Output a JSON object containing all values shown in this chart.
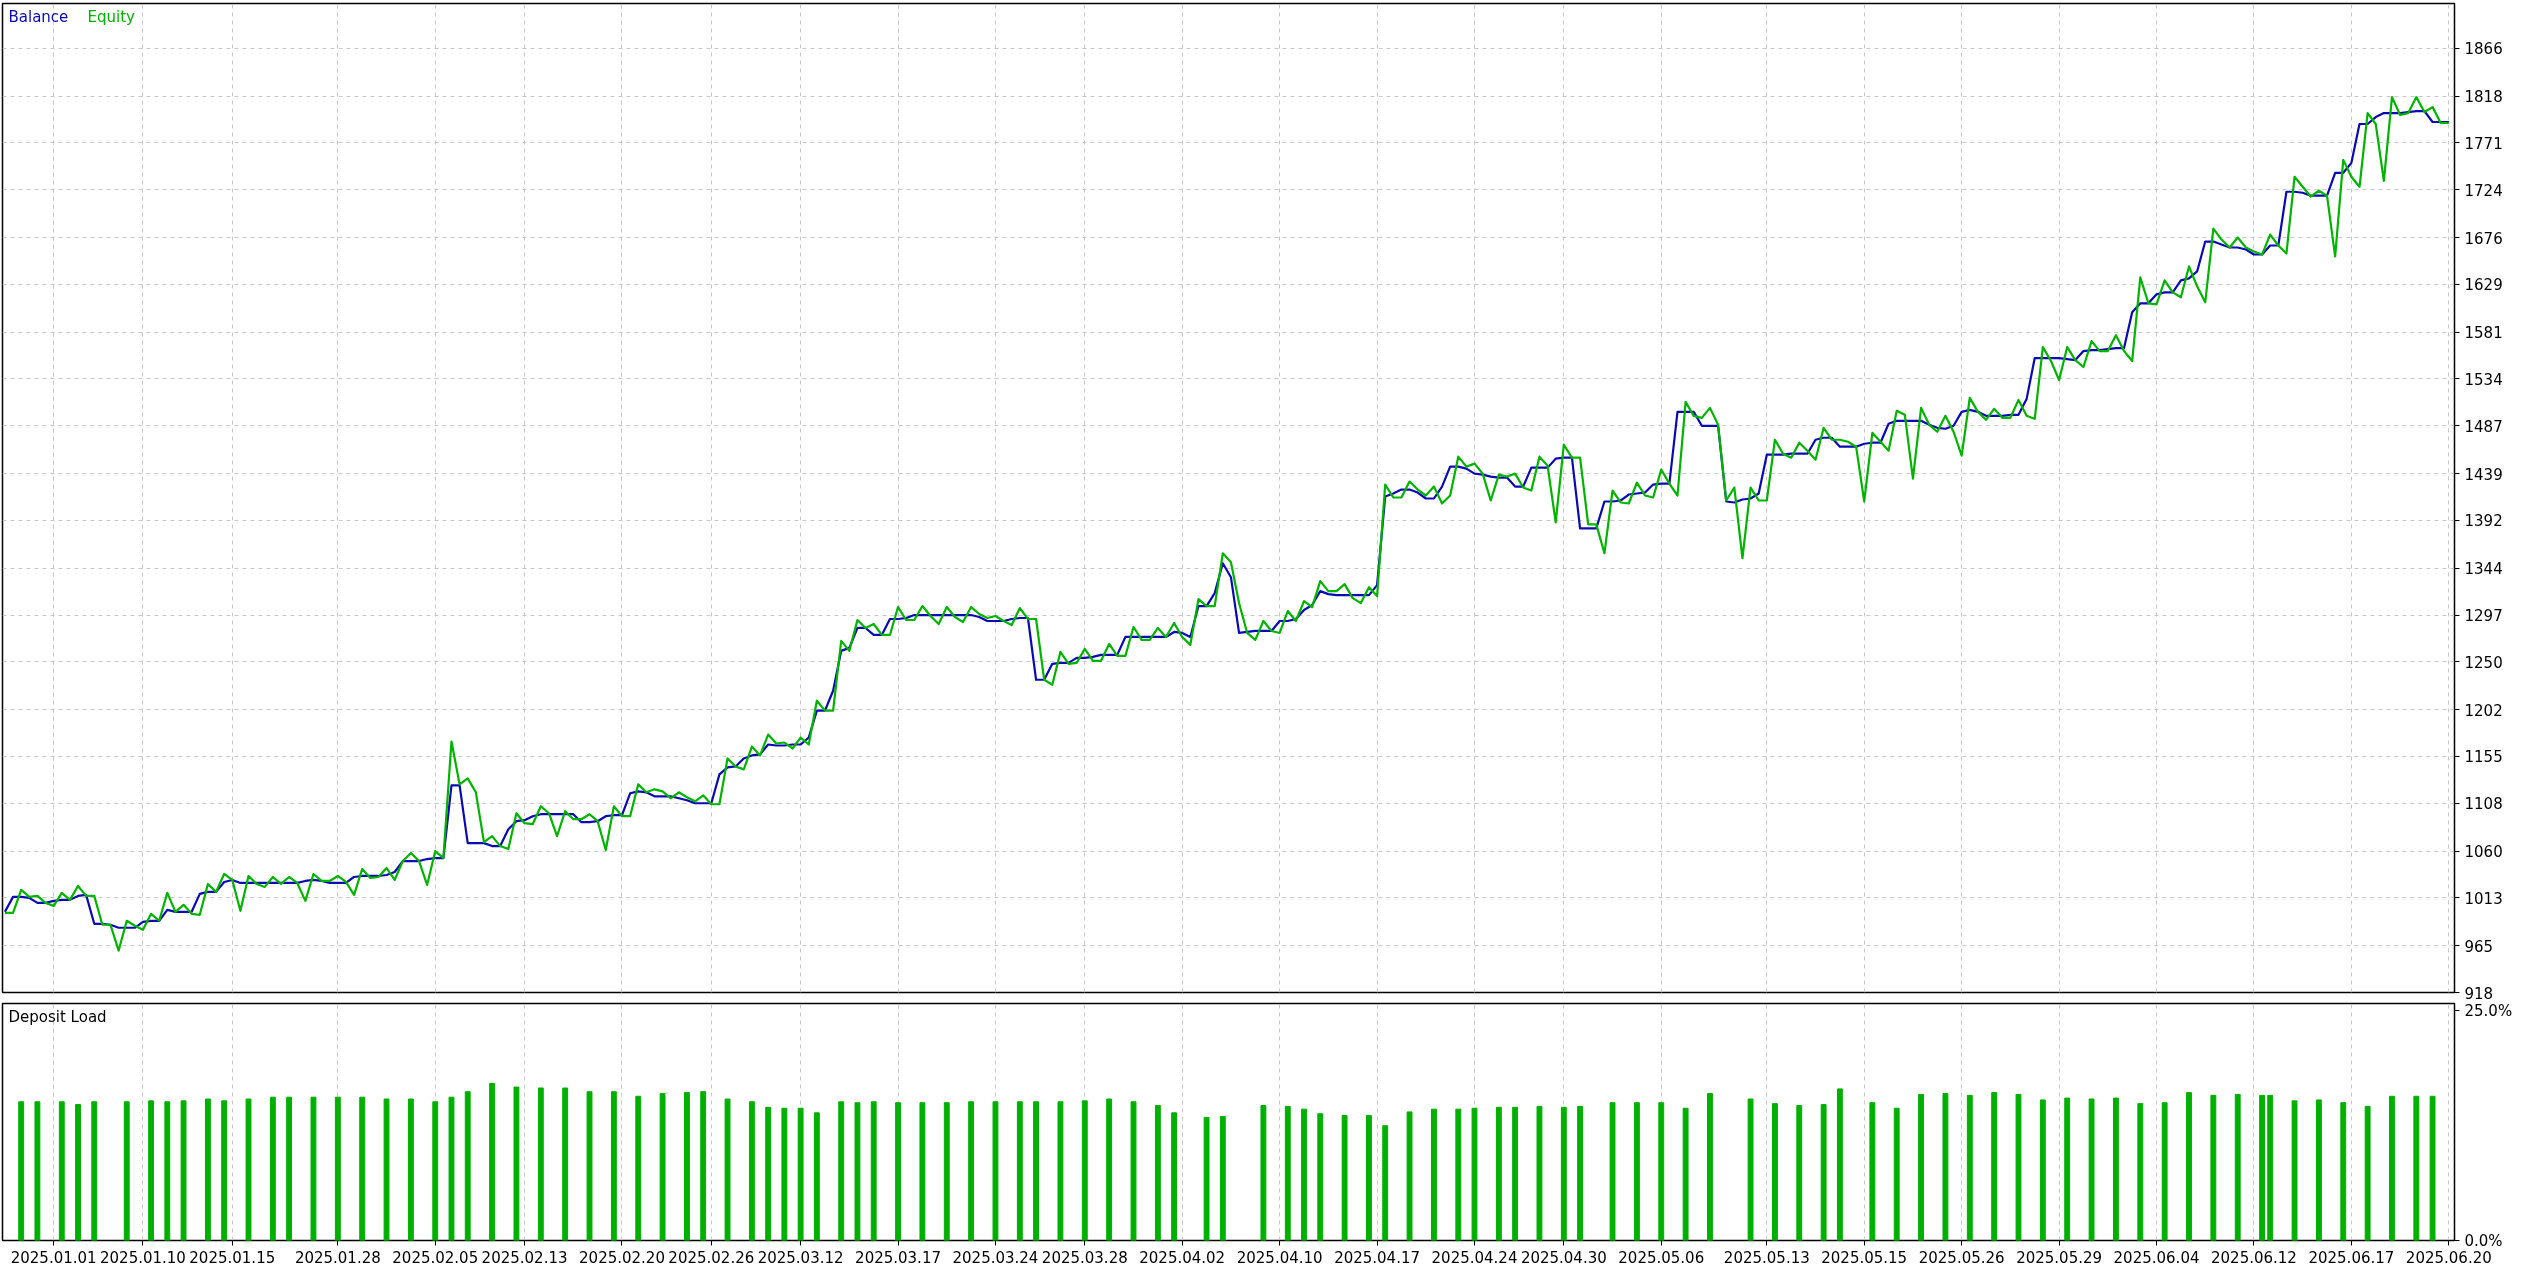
{
  "chart_data": [
    {
      "type": "line",
      "legend": "top left",
      "grid": true,
      "tick_labels": "y",
      "ylim": [
        918,
        1911
      ],
      "categories": [
        null,
        null,
        null,
        null,
        null,
        null,
        "2025.01.01",
        null,
        null,
        null,
        null,
        null,
        null,
        null,
        null,
        null,
        null,
        "2025.01.10",
        null,
        null,
        null,
        null,
        null,
        null,
        null,
        null,
        null,
        null,
        "2025.01.15",
        null,
        null,
        null,
        null,
        null,
        null,
        null,
        null,
        null,
        null,
        null,
        null,
        "2025.01.28",
        null,
        null,
        null,
        null,
        null,
        null,
        null,
        null,
        null,
        null,
        null,
        "2025.02.05",
        null,
        null,
        null,
        null,
        null,
        null,
        null,
        null,
        null,
        null,
        "2025.02.13",
        null,
        null,
        null,
        null,
        null,
        null,
        null,
        null,
        null,
        null,
        null,
        "2025.02.20",
        null,
        null,
        null,
        null,
        null,
        null,
        null,
        null,
        null,
        null,
        "2025.02.26",
        null,
        null,
        null,
        null,
        null,
        null,
        null,
        null,
        null,
        null,
        "2025.03.12",
        null,
        null,
        null,
        null,
        null,
        null,
        null,
        null,
        null,
        null,
        null,
        "2025.03.17",
        null,
        null,
        null,
        null,
        null,
        null,
        null,
        null,
        null,
        null,
        null,
        "2025.03.24",
        null,
        null,
        null,
        null,
        null,
        null,
        null,
        null,
        null,
        null,
        "2025.03.28",
        null,
        null,
        null,
        null,
        null,
        null,
        null,
        null,
        null,
        null,
        null,
        "2025.04.02",
        null,
        null,
        null,
        null,
        null,
        null,
        null,
        null,
        null,
        null,
        null,
        "2025.04.10",
        null,
        null,
        null,
        null,
        null,
        null,
        null,
        null,
        null,
        null,
        null,
        "2025.04.17",
        null,
        null,
        null,
        null,
        null,
        null,
        null,
        null,
        null,
        null,
        null,
        "2025.04.24",
        null,
        null,
        null,
        null,
        null,
        null,
        null,
        null,
        null,
        null,
        "2025.04.30",
        null,
        null,
        null,
        null,
        null,
        null,
        null,
        null,
        null,
        null,
        null,
        "2025.05.06",
        null,
        null,
        null,
        null,
        null,
        null,
        null,
        null,
        null,
        null,
        null,
        null,
        "2025.05.13",
        null,
        null,
        null,
        null,
        null,
        null,
        null,
        null,
        null,
        null,
        null,
        "2025.05.15",
        null,
        null,
        null,
        null,
        null,
        null,
        null,
        null,
        null,
        null,
        null,
        "2025.05.26",
        null,
        null,
        null,
        null,
        null,
        null,
        null,
        null,
        null,
        null,
        null,
        "2025.05.29",
        null,
        null,
        null,
        null,
        null,
        null,
        null,
        null,
        null,
        null,
        null,
        "2025.06.04",
        null,
        null,
        null,
        null,
        null,
        null,
        null,
        null,
        null,
        null,
        null,
        "2025.06.12",
        null,
        null,
        null,
        null,
        null,
        null,
        null,
        null,
        null,
        null,
        null,
        "2025.06.17",
        null,
        null,
        null,
        null,
        null,
        null,
        null,
        null,
        null,
        null,
        null,
        "2025.06.20"
      ],
      "yticks": [
        918,
        965,
        1013,
        1060,
        1108,
        1155,
        1202,
        1250,
        1297,
        1344,
        1392,
        1439,
        1487,
        1534,
        1581,
        1629,
        1676,
        1724,
        1771,
        1818,
        1866
      ],
      "series": [
        {
          "name": "Balance",
          "color": "#0a0ab4",
          "values": [
            999,
            1014,
            1014,
            1013,
            1008,
            1008,
            1010,
            1011,
            1011,
            1015,
            1016,
            987,
            987,
            986,
            983,
            983,
            983,
            989,
            990,
            990,
            1001,
            999,
            999,
            999,
            1017,
            1019,
            1019,
            1029,
            1031,
            1028,
            1028,
            1028,
            1028,
            1028,
            1028,
            1028,
            1028,
            1030,
            1031,
            1030,
            1028,
            1028,
            1028,
            1034,
            1035,
            1035,
            1035,
            1036,
            1039,
            1050,
            1050,
            1050,
            1052,
            1053,
            1053,
            1126,
            1126,
            1068,
            1068,
            1068,
            1065,
            1065,
            1082,
            1090,
            1091,
            1095,
            1097,
            1097,
            1097,
            1097,
            1097,
            1089,
            1089,
            1090,
            1095,
            1096,
            1096,
            1118,
            1120,
            1119,
            1115,
            1115,
            1115,
            1113,
            1111,
            1108,
            1108,
            1108,
            1137,
            1144,
            1145,
            1153,
            1156,
            1157,
            1167,
            1166,
            1166,
            1167,
            1167,
            1174,
            1201,
            1201,
            1221,
            1261,
            1264,
            1284,
            1284,
            1277,
            1277,
            1293,
            1293,
            1294,
            1297,
            1297,
            1297,
            1297,
            1297,
            1297,
            1297,
            1297,
            1295,
            1291,
            1291,
            1291,
            1293,
            1294,
            1294,
            1232,
            1232,
            1248,
            1249,
            1249,
            1254,
            1254,
            1255,
            1257,
            1257,
            1257,
            1275,
            1275,
            1275,
            1275,
            1275,
            1275,
            1280,
            1279,
            1275,
            1306,
            1306,
            1319,
            1349,
            1335,
            1279,
            1280,
            1281,
            1281,
            1281,
            1291,
            1291,
            1293,
            1302,
            1307,
            1321,
            1318,
            1317,
            1317,
            1317,
            1317,
            1317,
            1327,
            1416,
            1419,
            1423,
            1423,
            1420,
            1414,
            1414,
            1426,
            1446,
            1446,
            1444,
            1439,
            1438,
            1436,
            1435,
            1435,
            1426,
            1426,
            1445,
            1445,
            1445,
            1454,
            1455,
            1455,
            1384,
            1384,
            1384,
            1411,
            1411,
            1412,
            1418,
            1419,
            1420,
            1428,
            1429,
            1429,
            1501,
            1501,
            1501,
            1487,
            1487,
            1487,
            1411,
            1410,
            1413,
            1414,
            1419,
            1458,
            1458,
            1458,
            1459,
            1459,
            1459,
            1473,
            1475,
            1475,
            1466,
            1466,
            1466,
            1469,
            1470,
            1470,
            1489,
            1492,
            1492,
            1492,
            1492,
            1488,
            1485,
            1484,
            1487,
            1501,
            1503,
            1501,
            1497,
            1497,
            1497,
            1498,
            1498,
            1514,
            1555,
            1555,
            1555,
            1555,
            1554,
            1553,
            1562,
            1563,
            1563,
            1564,
            1565,
            1565,
            1601,
            1610,
            1610,
            1619,
            1621,
            1621,
            1633,
            1635,
            1642,
            1672,
            1672,
            1669,
            1666,
            1666,
            1664,
            1659,
            1659,
            1668,
            1668,
            1722,
            1722,
            1721,
            1718,
            1718,
            1718,
            1741,
            1741,
            1751,
            1790,
            1790,
            1797,
            1801,
            1801,
            1801,
            1802,
            1803,
            1803,
            1792,
            1792,
            1792
          ]
        },
        {
          "name": "Equity",
          "color": "#00b400",
          "values": [
            998,
            998,
            1021,
            1014,
            1015,
            1008,
            1005,
            1018,
            1011,
            1025,
            1015,
            1015,
            986,
            986,
            960,
            990,
            985,
            981,
            997,
            990,
            1018,
            999,
            1006,
            997,
            996,
            1027,
            1019,
            1037,
            1031,
            1000,
            1035,
            1027,
            1024,
            1034,
            1027,
            1034,
            1028,
            1010,
            1037,
            1030,
            1030,
            1035,
            1029,
            1016,
            1042,
            1033,
            1034,
            1043,
            1031,
            1050,
            1058,
            1050,
            1026,
            1060,
            1053,
            1170,
            1127,
            1133,
            1119,
            1069,
            1075,
            1065,
            1062,
            1098,
            1088,
            1087,
            1105,
            1098,
            1075,
            1100,
            1092,
            1092,
            1097,
            1090,
            1061,
            1105,
            1095,
            1095,
            1127,
            1119,
            1122,
            1120,
            1113,
            1119,
            1114,
            1110,
            1116,
            1107,
            1107,
            1153,
            1145,
            1142,
            1165,
            1156,
            1177,
            1168,
            1169,
            1163,
            1174,
            1167,
            1211,
            1201,
            1201,
            1271,
            1261,
            1292,
            1284,
            1288,
            1277,
            1277,
            1305,
            1292,
            1292,
            1306,
            1296,
            1288,
            1305,
            1295,
            1290,
            1305,
            1298,
            1294,
            1296,
            1291,
            1287,
            1304,
            1293,
            1293,
            1232,
            1227,
            1260,
            1248,
            1249,
            1263,
            1251,
            1251,
            1268,
            1256,
            1256,
            1285,
            1272,
            1272,
            1284,
            1275,
            1289,
            1275,
            1267,
            1313,
            1306,
            1306,
            1359,
            1350,
            1309,
            1279,
            1272,
            1291,
            1281,
            1279,
            1301,
            1291,
            1311,
            1305,
            1331,
            1321,
            1321,
            1328,
            1314,
            1309,
            1325,
            1316,
            1428,
            1415,
            1415,
            1431,
            1423,
            1417,
            1426,
            1409,
            1417,
            1456,
            1446,
            1449,
            1439,
            1412,
            1438,
            1436,
            1439,
            1425,
            1422,
            1456,
            1447,
            1390,
            1468,
            1455,
            1455,
            1388,
            1388,
            1359,
            1422,
            1410,
            1409,
            1430,
            1417,
            1415,
            1443,
            1429,
            1417,
            1511,
            1497,
            1495,
            1505,
            1488,
            1412,
            1425,
            1354,
            1425,
            1412,
            1412,
            1473,
            1459,
            1455,
            1470,
            1462,
            1453,
            1485,
            1473,
            1473,
            1471,
            1466,
            1411,
            1480,
            1471,
            1462,
            1502,
            1498,
            1434,
            1505,
            1488,
            1481,
            1497,
            1481,
            1457,
            1515,
            1501,
            1493,
            1504,
            1495,
            1495,
            1513,
            1497,
            1494,
            1566,
            1552,
            1533,
            1566,
            1553,
            1546,
            1572,
            1562,
            1562,
            1578,
            1562,
            1552,
            1636,
            1610,
            1609,
            1633,
            1621,
            1616,
            1647,
            1627,
            1611,
            1685,
            1674,
            1666,
            1676,
            1666,
            1662,
            1659,
            1679,
            1668,
            1660,
            1737,
            1727,
            1717,
            1723,
            1718,
            1657,
            1754,
            1737,
            1727,
            1801,
            1790,
            1733,
            1817,
            1799,
            1801,
            1817,
            1802,
            1807,
            1791,
            1791
          ]
        }
      ]
    },
    {
      "type": "bar",
      "title": "Deposit Load",
      "grid": "x",
      "color": "#00b000",
      "ylim": [
        0,
        25.8
      ],
      "categories": [
        null,
        null,
        null,
        null,
        null,
        null,
        "2025.01.01",
        null,
        null,
        null,
        null,
        null,
        null,
        null,
        null,
        null,
        null,
        "2025.01.10",
        null,
        null,
        null,
        null,
        null,
        null,
        null,
        null,
        null,
        null,
        "2025.01.15",
        null,
        null,
        null,
        null,
        null,
        null,
        null,
        null,
        null,
        null,
        null,
        null,
        "2025.01.28",
        null,
        null,
        null,
        null,
        null,
        null,
        null,
        null,
        null,
        null,
        null,
        "2025.02.05",
        null,
        null,
        null,
        null,
        null,
        null,
        null,
        null,
        null,
        null,
        "2025.02.13",
        null,
        null,
        null,
        null,
        null,
        null,
        null,
        null,
        null,
        null,
        null,
        "2025.02.20",
        null,
        null,
        null,
        null,
        null,
        null,
        null,
        null,
        null,
        null,
        "2025.02.26",
        null,
        null,
        null,
        null,
        null,
        null,
        null,
        null,
        null,
        null,
        "2025.03.12",
        null,
        null,
        null,
        null,
        null,
        null,
        null,
        null,
        null,
        null,
        null,
        "2025.03.17",
        null,
        null,
        null,
        null,
        null,
        null,
        null,
        null,
        null,
        null,
        null,
        "2025.03.24",
        null,
        null,
        null,
        null,
        null,
        null,
        null,
        null,
        null,
        null,
        "2025.03.28",
        null,
        null,
        null,
        null,
        null,
        null,
        null,
        null,
        null,
        null,
        null,
        "2025.04.02",
        null,
        null,
        null,
        null,
        null,
        null,
        null,
        null,
        null,
        null,
        null,
        "2025.04.10",
        null,
        null,
        null,
        null,
        null,
        null,
        null,
        null,
        null,
        null,
        null,
        "2025.04.17",
        null,
        null,
        null,
        null,
        null,
        null,
        null,
        null,
        null,
        null,
        null,
        "2025.04.24",
        null,
        null,
        null,
        null,
        null,
        null,
        null,
        null,
        null,
        null,
        "2025.04.30",
        null,
        null,
        null,
        null,
        null,
        null,
        null,
        null,
        null,
        null,
        null,
        "2025.05.06",
        null,
        null,
        null,
        null,
        null,
        null,
        null,
        null,
        null,
        null,
        null,
        null,
        "2025.05.13",
        null,
        null,
        null,
        null,
        null,
        null,
        null,
        null,
        null,
        null,
        null,
        "2025.05.15",
        null,
        null,
        null,
        null,
        null,
        null,
        null,
        null,
        null,
        null,
        null,
        "2025.05.26",
        null,
        null,
        null,
        null,
        null,
        null,
        null,
        null,
        null,
        null,
        null,
        "2025.05.29",
        null,
        null,
        null,
        null,
        null,
        null,
        null,
        null,
        null,
        null,
        null,
        "2025.06.04",
        null,
        null,
        null,
        null,
        null,
        null,
        null,
        null,
        null,
        null,
        null,
        "2025.06.12",
        null,
        null,
        null,
        null,
        null,
        null,
        null,
        null,
        null,
        null,
        null,
        "2025.06.17",
        null,
        null,
        null,
        null,
        null,
        null,
        null,
        null,
        null,
        null,
        null,
        "2025.06.20"
      ],
      "yticks": [
        {
          "value": 0,
          "label": "0.0%"
        },
        {
          "value": 25,
          "label": "25.0%"
        }
      ],
      "values": [
        null,
        null,
        15.1,
        null,
        15.1,
        null,
        null,
        15.1,
        null,
        14.8,
        null,
        15.1,
        null,
        null,
        null,
        15.1,
        null,
        null,
        15.2,
        null,
        15.1,
        null,
        15.2,
        null,
        null,
        15.4,
        null,
        15.2,
        null,
        null,
        15.4,
        null,
        null,
        15.6,
        null,
        15.6,
        null,
        null,
        15.6,
        null,
        null,
        15.6,
        null,
        null,
        15.6,
        null,
        null,
        15.4,
        null,
        null,
        15.4,
        null,
        null,
        15.1,
        null,
        15.6,
        null,
        16.2,
        null,
        null,
        17.1,
        null,
        null,
        16.7,
        null,
        null,
        16.6,
        null,
        null,
        16.6,
        null,
        null,
        16.2,
        null,
        null,
        16.2,
        null,
        null,
        15.7,
        null,
        null,
        16.0,
        null,
        null,
        16.1,
        null,
        16.2,
        null,
        null,
        15.4,
        null,
        null,
        15.1,
        null,
        14.5,
        null,
        14.4,
        null,
        14.4,
        null,
        13.9,
        null,
        null,
        15.1,
        null,
        15.0,
        null,
        15.1,
        null,
        null,
        15.0,
        null,
        null,
        15.0,
        null,
        null,
        15.0,
        null,
        null,
        15.1,
        null,
        null,
        15.1,
        null,
        null,
        15.1,
        null,
        15.1,
        null,
        null,
        15.1,
        null,
        null,
        15.2,
        null,
        null,
        15.4,
        null,
        null,
        15.1,
        null,
        null,
        14.7,
        null,
        13.9,
        null,
        null,
        null,
        13.4,
        null,
        13.5,
        null,
        null,
        null,
        null,
        14.7,
        null,
        null,
        14.6,
        null,
        14.3,
        null,
        13.8,
        null,
        null,
        13.6,
        null,
        null,
        13.6,
        null,
        12.5,
        null,
        null,
        14.0,
        null,
        null,
        14.3,
        null,
        null,
        14.3,
        null,
        14.4,
        null,
        null,
        14.5,
        null,
        14.5,
        null,
        null,
        14.6,
        null,
        null,
        14.5,
        null,
        14.6,
        null,
        null,
        null,
        15.0,
        null,
        null,
        15.0,
        null,
        null,
        15.0,
        null,
        null,
        14.4,
        null,
        null,
        16.0,
        null,
        null,
        null,
        null,
        15.4,
        null,
        null,
        14.9,
        null,
        null,
        14.7,
        null,
        null,
        14.8,
        null,
        16.5,
        null,
        null,
        null,
        15.0,
        null,
        null,
        14.4,
        null,
        null,
        15.9,
        null,
        null,
        16.0,
        null,
        null,
        15.8,
        null,
        null,
        16.1,
        null,
        null,
        15.9,
        null,
        null,
        15.3,
        null,
        null,
        15.5,
        null,
        null,
        15.4,
        null,
        null,
        15.5,
        null,
        null,
        14.9,
        null,
        null,
        15.0,
        null,
        null,
        16.1,
        null,
        null,
        15.8,
        null,
        null,
        15.9,
        null,
        null,
        15.8,
        15.8,
        null,
        null,
        15.2,
        null,
        null,
        15.3,
        null,
        null,
        15.0,
        null,
        null,
        14.6,
        null,
        null,
        15.7,
        null,
        null,
        15.7,
        null,
        15.7,
        null,
        null
      ]
    }
  ]
}
